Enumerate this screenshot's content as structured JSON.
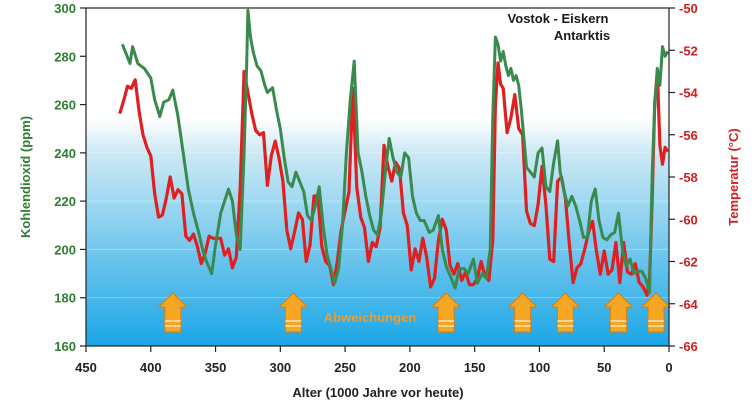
{
  "chart_data": {
    "type": "line",
    "title": "Vostok - Eiskern",
    "subtitle": "Antarktis",
    "xlabel": "Alter (1000 Jahre vor heute)",
    "ylabel_left": "Kohlendioxid (ppm)",
    "ylabel_right": "Temperatur (°C)",
    "xlim": [
      450,
      0
    ],
    "ylim_left": [
      160,
      300
    ],
    "ylim_right": [
      -66,
      -50
    ],
    "x_ticks": [
      "450",
      "400",
      "350",
      "300",
      "250",
      "200",
      "150",
      "100",
      "50",
      "0"
    ],
    "y_ticks_left": [
      "160",
      "180",
      "200",
      "220",
      "240",
      "260",
      "280",
      "300"
    ],
    "y_ticks_right": [
      "-66",
      "-64",
      "-62",
      "-60",
      "-58",
      "-56",
      "-54",
      "-52",
      "-50"
    ],
    "annotation": "Abweichungen",
    "arrow_ages": [
      383,
      290,
      172,
      113,
      80,
      39,
      10
    ],
    "colors": {
      "co2": "#3a8a4e",
      "temperature": "#e02020",
      "arrow": "#f5a623",
      "arrow_edge": "#d97d10",
      "bg_top": "#ffffff",
      "bg_mid": "#cfeaf5",
      "bg_bottom": "#1aa6e6"
    },
    "series": [
      {
        "name": "Kohlendioxid (ppm)",
        "axis": "left",
        "color": "#3a8a4e",
        "points": [
          [
            422,
            285
          ],
          [
            419,
            281
          ],
          [
            416,
            277
          ],
          [
            414,
            284
          ],
          [
            410,
            277
          ],
          [
            405,
            275
          ],
          [
            400,
            271
          ],
          [
            397,
            262
          ],
          [
            393,
            255
          ],
          [
            390,
            261
          ],
          [
            386,
            262
          ],
          [
            383,
            266
          ],
          [
            379,
            255
          ],
          [
            375,
            240
          ],
          [
            371,
            225
          ],
          [
            367,
            215
          ],
          [
            363,
            207
          ],
          [
            360,
            200
          ],
          [
            357,
            195
          ],
          [
            353,
            190
          ],
          [
            350,
            202
          ],
          [
            346,
            215
          ],
          [
            343,
            220
          ],
          [
            340,
            225
          ],
          [
            337,
            220
          ],
          [
            334,
            206
          ],
          [
            331,
            200
          ],
          [
            328,
            240
          ],
          [
            326,
            275
          ],
          [
            325,
            299
          ],
          [
            323,
            288
          ],
          [
            321,
            282
          ],
          [
            318,
            276
          ],
          [
            315,
            274
          ],
          [
            312,
            268
          ],
          [
            310,
            265
          ],
          [
            306,
            267
          ],
          [
            303,
            258
          ],
          [
            300,
            250
          ],
          [
            297,
            238
          ],
          [
            294,
            228
          ],
          [
            291,
            226
          ],
          [
            288,
            232
          ],
          [
            285,
            228
          ],
          [
            282,
            224
          ],
          [
            279,
            214
          ],
          [
            276,
            212
          ],
          [
            273,
            218
          ],
          [
            270,
            226
          ],
          [
            267,
            210
          ],
          [
            264,
            198
          ],
          [
            261,
            192
          ],
          [
            258,
            186
          ],
          [
            255,
            192
          ],
          [
            252,
            210
          ],
          [
            249,
            240
          ],
          [
            246,
            262
          ],
          [
            243,
            278
          ],
          [
            240,
            240
          ],
          [
            237,
            232
          ],
          [
            234,
            222
          ],
          [
            231,
            214
          ],
          [
            228,
            208
          ],
          [
            225,
            206
          ],
          [
            222,
            215
          ],
          [
            219,
            232
          ],
          [
            216,
            246
          ],
          [
            213,
            238
          ],
          [
            210,
            232
          ],
          [
            207,
            230
          ],
          [
            204,
            240
          ],
          [
            201,
            238
          ],
          [
            198,
            222
          ],
          [
            195,
            215
          ],
          [
            192,
            212
          ],
          [
            189,
            212
          ],
          [
            185,
            207
          ],
          [
            182,
            208
          ],
          [
            178,
            214
          ],
          [
            175,
            200
          ],
          [
            172,
            193
          ],
          [
            168,
            188
          ],
          [
            165,
            184
          ],
          [
            162,
            192
          ],
          [
            158,
            192
          ],
          [
            155,
            190
          ],
          [
            151,
            196
          ],
          [
            148,
            186
          ],
          [
            144,
            190
          ],
          [
            141,
            188
          ],
          [
            138,
            200
          ],
          [
            136,
            255
          ],
          [
            134,
            288
          ],
          [
            132,
            285
          ],
          [
            130,
            278
          ],
          [
            128,
            282
          ],
          [
            126,
            276
          ],
          [
            124,
            272
          ],
          [
            122,
            275
          ],
          [
            120,
            270
          ],
          [
            118,
            272
          ],
          [
            116,
            268
          ],
          [
            114,
            258
          ],
          [
            112,
            246
          ],
          [
            110,
            234
          ],
          [
            107,
            232
          ],
          [
            104,
            230
          ],
          [
            101,
            240
          ],
          [
            98,
            242
          ],
          [
            95,
            226
          ],
          [
            92,
            224
          ],
          [
            89,
            236
          ],
          [
            86,
            245
          ],
          [
            84,
            232
          ],
          [
            81,
            224
          ],
          [
            78,
            218
          ],
          [
            75,
            222
          ],
          [
            72,
            218
          ],
          [
            69,
            212
          ],
          [
            66,
            205
          ],
          [
            63,
            205
          ],
          [
            60,
            220
          ],
          [
            57,
            225
          ],
          [
            54,
            212
          ],
          [
            51,
            205
          ],
          [
            48,
            204
          ],
          [
            45,
            206
          ],
          [
            42,
            207
          ],
          [
            39,
            215
          ],
          [
            36,
            200
          ],
          [
            33,
            193
          ],
          [
            30,
            196
          ],
          [
            27,
            190
          ],
          [
            24,
            191
          ],
          [
            21,
            191
          ],
          [
            18,
            188
          ],
          [
            15,
            182
          ],
          [
            13,
            232
          ],
          [
            11,
            259
          ],
          [
            9,
            275
          ],
          [
            7,
            268
          ],
          [
            5,
            284
          ],
          [
            3,
            280
          ],
          [
            1,
            282
          ]
        ]
      },
      {
        "name": "Temperatur (°C)",
        "axis": "right",
        "color": "#e02020",
        "points": [
          [
            424,
            -55.0
          ],
          [
            421,
            -54.4
          ],
          [
            418,
            -53.7
          ],
          [
            415,
            -53.8
          ],
          [
            412,
            -53.4
          ],
          [
            409,
            -54.9
          ],
          [
            406,
            -56.0
          ],
          [
            403,
            -56.6
          ],
          [
            400,
            -57.0
          ],
          [
            397,
            -58.8
          ],
          [
            394,
            -59.9
          ],
          [
            391,
            -59.8
          ],
          [
            388,
            -59.0
          ],
          [
            385,
            -58.0
          ],
          [
            382,
            -59.0
          ],
          [
            379,
            -58.6
          ],
          [
            376,
            -58.8
          ],
          [
            373,
            -60.8
          ],
          [
            370,
            -61.0
          ],
          [
            367,
            -60.7
          ],
          [
            364,
            -61.3
          ],
          [
            361,
            -62.1
          ],
          [
            358,
            -61.6
          ],
          [
            355,
            -60.8
          ],
          [
            352,
            -60.9
          ],
          [
            349,
            -60.9
          ],
          [
            346,
            -60.9
          ],
          [
            343,
            -61.7
          ],
          [
            340,
            -61.4
          ],
          [
            337,
            -62.3
          ],
          [
            334,
            -61.8
          ],
          [
            331,
            -58.5
          ],
          [
            328,
            -53.0
          ],
          [
            325,
            -54.0
          ],
          [
            322,
            -55.0
          ],
          [
            319,
            -55.8
          ],
          [
            316,
            -56.0
          ],
          [
            313,
            -55.9
          ],
          [
            310,
            -58.4
          ],
          [
            307,
            -57.0
          ],
          [
            304,
            -56.3
          ],
          [
            301,
            -57.1
          ],
          [
            298,
            -58.2
          ],
          [
            295,
            -60.5
          ],
          [
            292,
            -61.4
          ],
          [
            289,
            -60.6
          ],
          [
            286,
            -59.7
          ],
          [
            283,
            -60.0
          ],
          [
            280,
            -62.0
          ],
          [
            277,
            -61.2
          ],
          [
            274,
            -58.9
          ],
          [
            271,
            -58.9
          ],
          [
            268,
            -61.3
          ],
          [
            265,
            -62.0
          ],
          [
            262,
            -62.2
          ],
          [
            259,
            -63.1
          ],
          [
            256,
            -62.0
          ],
          [
            253,
            -60.5
          ],
          [
            250,
            -59.6
          ],
          [
            247,
            -58.7
          ],
          [
            244,
            -53.8
          ],
          [
            241,
            -58.5
          ],
          [
            238,
            -59.9
          ],
          [
            235,
            -60.4
          ],
          [
            232,
            -62.0
          ],
          [
            229,
            -61.1
          ],
          [
            226,
            -61.3
          ],
          [
            223,
            -60.4
          ],
          [
            220,
            -56.5
          ],
          [
            217,
            -57.5
          ],
          [
            214,
            -58.2
          ],
          [
            211,
            -57.3
          ],
          [
            208,
            -57.6
          ],
          [
            205,
            -59.7
          ],
          [
            202,
            -60.3
          ],
          [
            199,
            -62.4
          ],
          [
            196,
            -61.4
          ],
          [
            193,
            -62.0
          ],
          [
            190,
            -60.9
          ],
          [
            187,
            -61.8
          ],
          [
            184,
            -63.2
          ],
          [
            181,
            -62.8
          ],
          [
            178,
            -61.0
          ],
          [
            175,
            -60.0
          ],
          [
            172,
            -60.5
          ],
          [
            169,
            -62.2
          ],
          [
            166,
            -62.6
          ],
          [
            163,
            -62.1
          ],
          [
            160,
            -62.9
          ],
          [
            157,
            -62.5
          ],
          [
            154,
            -63.1
          ],
          [
            151,
            -63.1
          ],
          [
            148,
            -62.8
          ],
          [
            145,
            -62.0
          ],
          [
            142,
            -62.7
          ],
          [
            139,
            -62.9
          ],
          [
            136,
            -61.0
          ],
          [
            134,
            -54.6
          ],
          [
            132,
            -52.6
          ],
          [
            130,
            -53.6
          ],
          [
            128,
            -53.8
          ],
          [
            125,
            -55.9
          ],
          [
            122,
            -55.2
          ],
          [
            119,
            -54.1
          ],
          [
            116,
            -55.7
          ],
          [
            113,
            -56.0
          ],
          [
            110,
            -59.6
          ],
          [
            107,
            -60.2
          ],
          [
            104,
            -60.3
          ],
          [
            101,
            -59.3
          ],
          [
            98,
            -57.5
          ],
          [
            95,
            -59.3
          ],
          [
            92,
            -61.9
          ],
          [
            89,
            -62.0
          ],
          [
            86,
            -58.2
          ],
          [
            83,
            -58.0
          ],
          [
            80,
            -59.0
          ],
          [
            77,
            -61.1
          ],
          [
            74,
            -63.0
          ],
          [
            71,
            -62.3
          ],
          [
            68,
            -62.1
          ],
          [
            65,
            -61.4
          ],
          [
            62,
            -60.6
          ],
          [
            59,
            -60.1
          ],
          [
            56,
            -61.5
          ],
          [
            53,
            -62.6
          ],
          [
            50,
            -61.5
          ],
          [
            47,
            -62.6
          ],
          [
            44,
            -62.4
          ],
          [
            41,
            -61.1
          ],
          [
            38,
            -63.0
          ],
          [
            35,
            -61.1
          ],
          [
            32,
            -62.5
          ],
          [
            29,
            -62.6
          ],
          [
            26,
            -62.1
          ],
          [
            23,
            -63.0
          ],
          [
            20,
            -63.2
          ],
          [
            17,
            -63.6
          ],
          [
            15,
            -62.8
          ],
          [
            13,
            -59.0
          ],
          [
            11,
            -54.5
          ],
          [
            9,
            -53.0
          ],
          [
            7,
            -56.5
          ],
          [
            5,
            -57.4
          ],
          [
            3,
            -56.6
          ],
          [
            1,
            -56.8
          ]
        ]
      }
    ]
  }
}
